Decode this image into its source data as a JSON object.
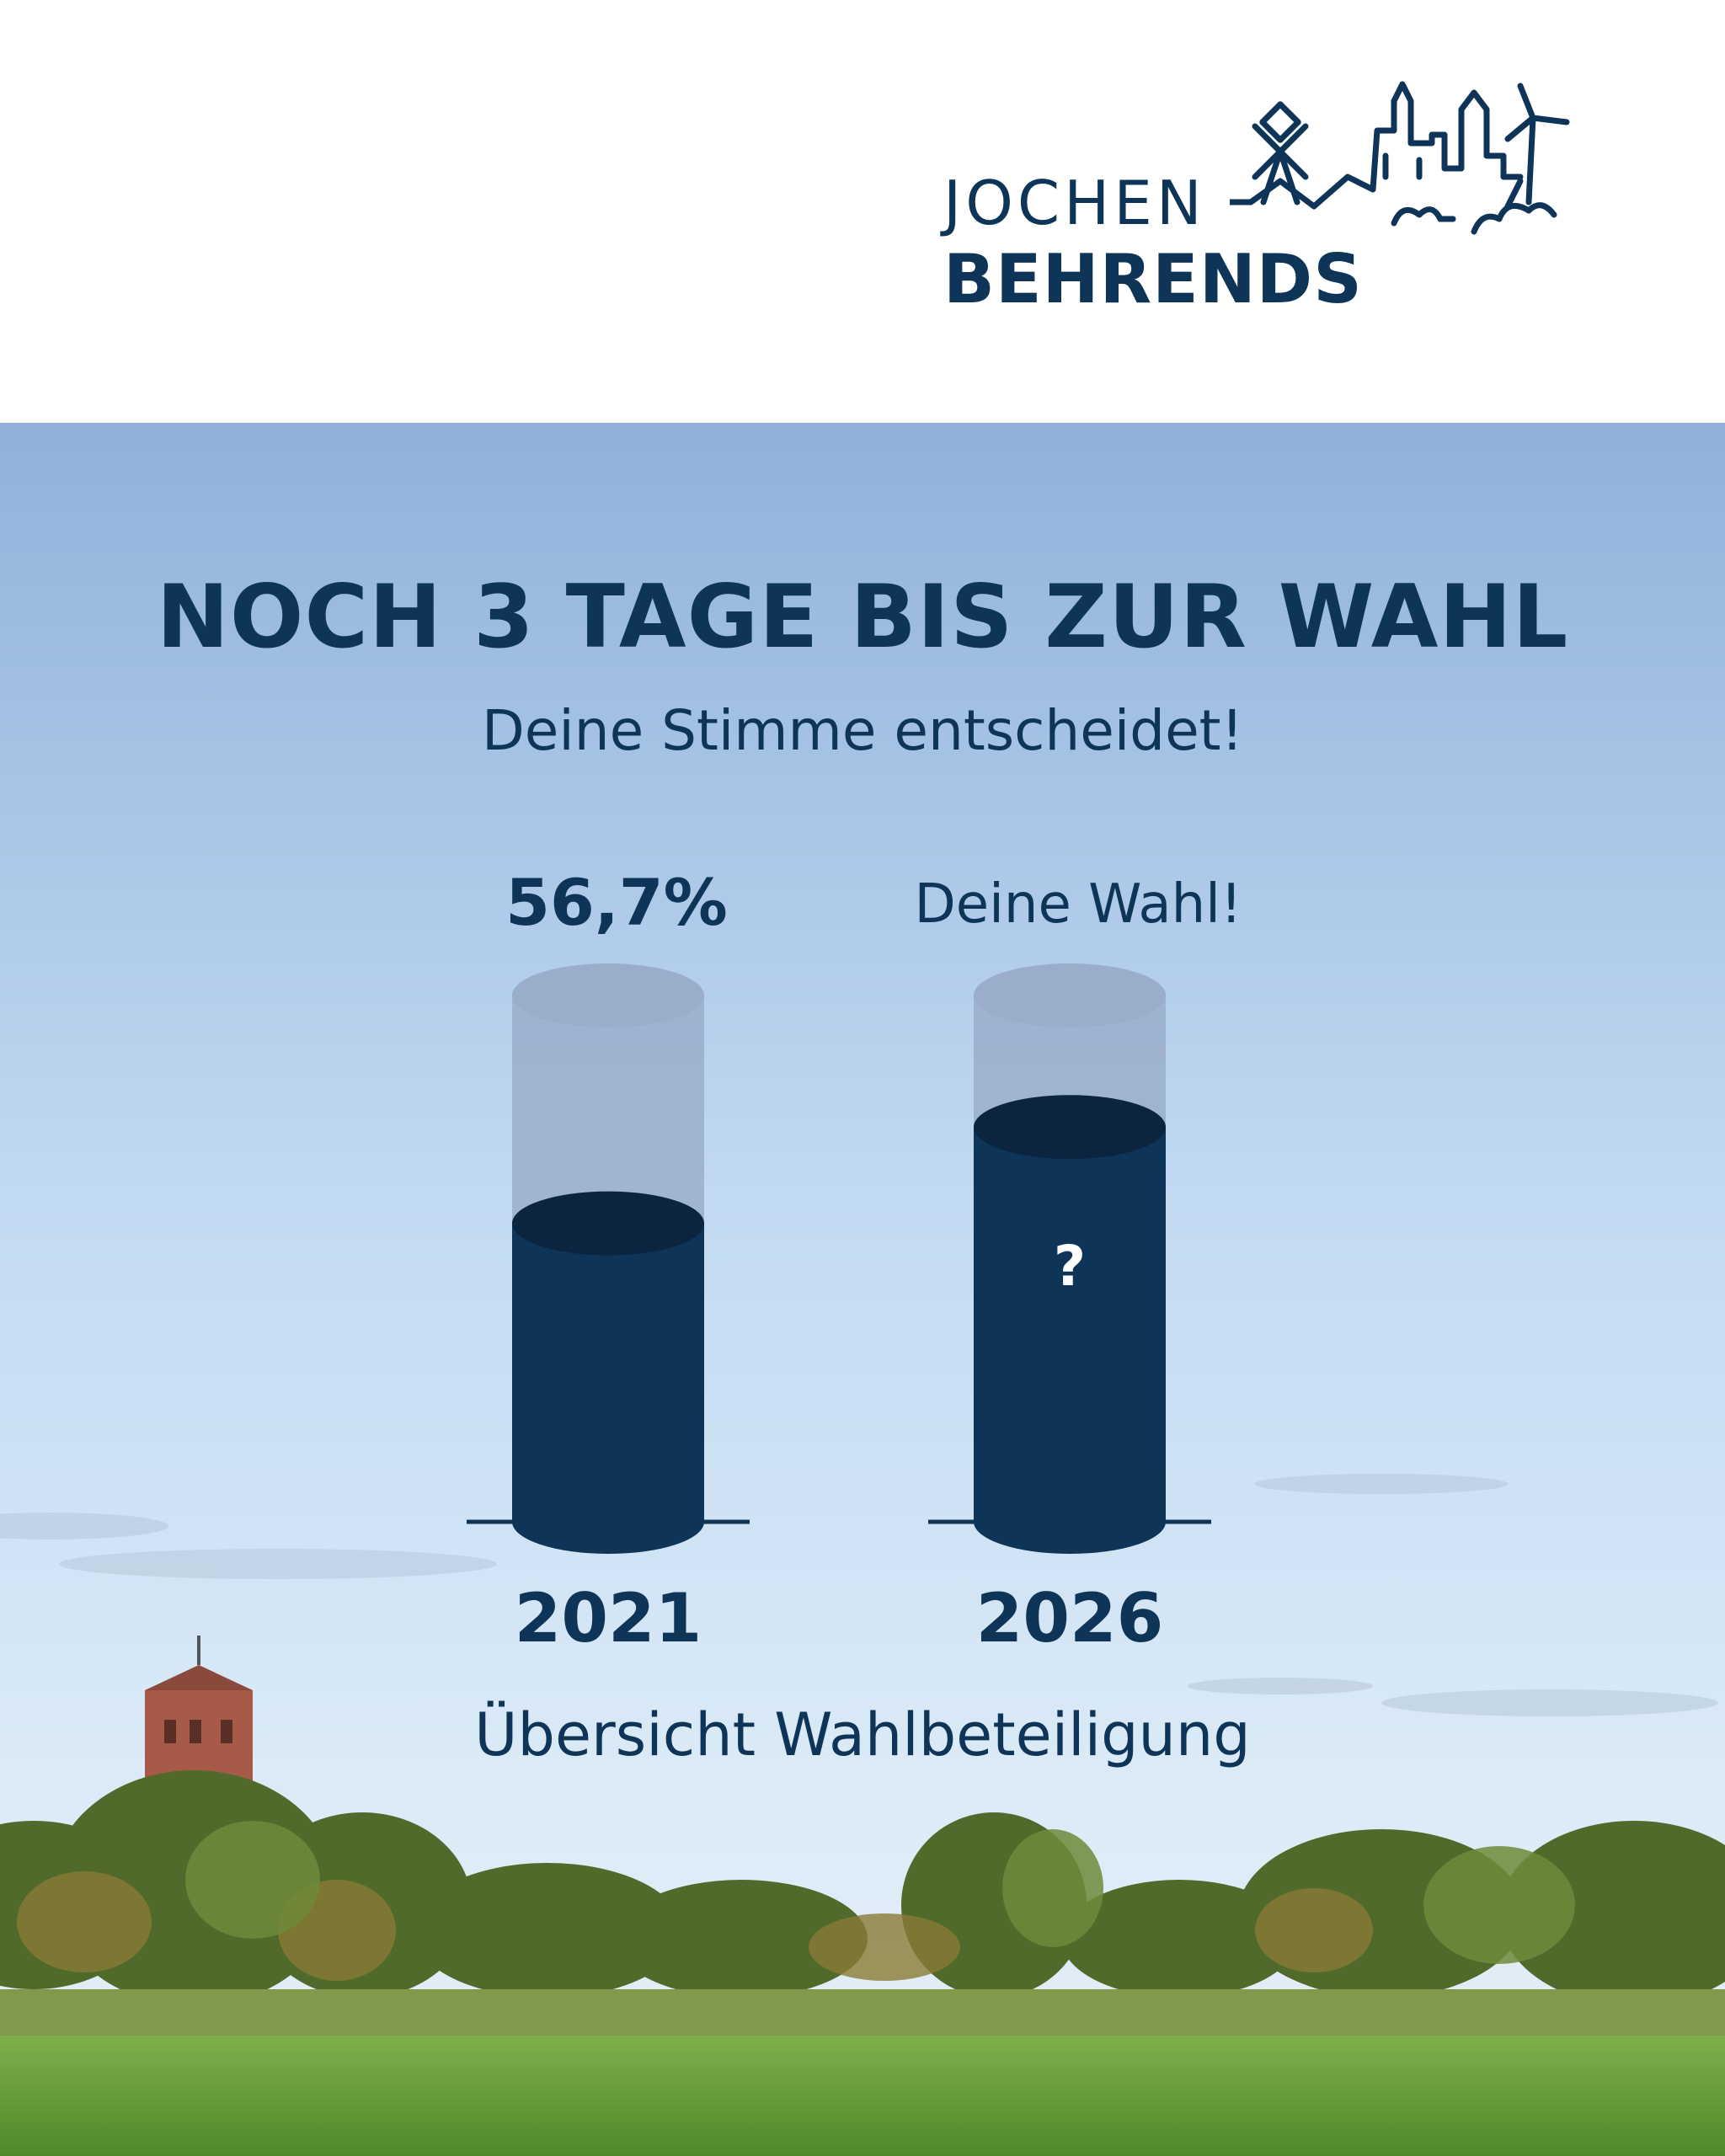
{
  "logo": {
    "first_name": "JOCHEN",
    "last_name": "BEHRENDS"
  },
  "headline": "NOCH 3 TAGE BIS ZUR WAHL",
  "subline": "Deine Stimme entscheidet!",
  "colors": {
    "navy": "#0e3557",
    "sky_top": "#8fb1da",
    "sky_bottom": "#dcebf7",
    "empty_cylinder": "#9aaecb",
    "field_green": "#5f9a35"
  },
  "chart_data": {
    "type": "bar",
    "style": "cylinder",
    "categories": [
      "2021",
      "2026"
    ],
    "values": [
      56.7,
      75
    ],
    "value_labels": [
      "56,7%",
      "Deine Wahl!"
    ],
    "center_labels": [
      "",
      "?"
    ],
    "ylim": [
      0,
      100
    ],
    "title": "",
    "caption": "Übersicht Wahlbeteiligung"
  }
}
